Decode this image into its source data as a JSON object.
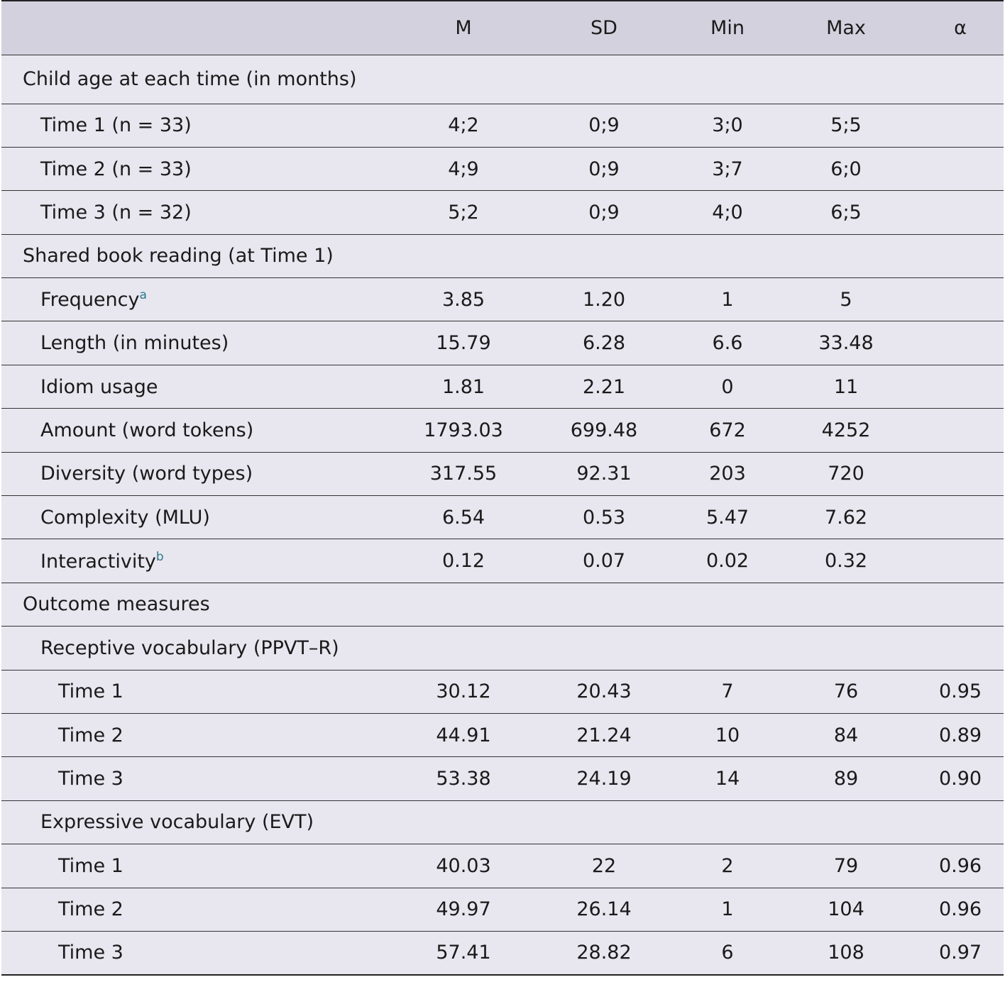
{
  "table": {
    "columns": [
      "M",
      "SD",
      "Min",
      "Max",
      "α"
    ],
    "sections": [
      {
        "title": "Child age at each time (in months)",
        "rows": [
          {
            "label": "Time 1 (n = 33)",
            "cells": [
              "4;2",
              "0;9",
              "3;0",
              "5;5"
            ]
          },
          {
            "label": "Time 2 (n = 33)",
            "cells": [
              "4;9",
              "0;9",
              "3;7",
              "6;0"
            ]
          },
          {
            "label": "Time 3 (n = 32)",
            "cells": [
              "5;2",
              "0;9",
              "4;0",
              "6;5"
            ]
          }
        ]
      },
      {
        "title": "Shared book reading (at Time 1)",
        "rows": [
          {
            "label": "Frequency",
            "note": "a",
            "cells": [
              "3.85",
              "1.20",
              "1",
              "5"
            ]
          },
          {
            "label": "Length (in minutes)",
            "cells": [
              "15.79",
              "6.28",
              "6.6",
              "33.48"
            ]
          },
          {
            "label": "Idiom usage",
            "cells": [
              "1.81",
              "2.21",
              "0",
              "11"
            ]
          },
          {
            "label": "Amount (word tokens)",
            "cells": [
              "1793.03",
              "699.48",
              "672",
              "4252"
            ]
          },
          {
            "label": "Diversity (word types)",
            "cells": [
              "317.55",
              "92.31",
              "203",
              "720"
            ]
          },
          {
            "label": "Complexity (MLU)",
            "cells": [
              "6.54",
              "0.53",
              "5.47",
              "7.62"
            ]
          },
          {
            "label": "Interactivity",
            "note": "b",
            "cells": [
              "0.12",
              "0.07",
              "0.02",
              "0.32"
            ]
          }
        ]
      },
      {
        "title": "Outcome measures",
        "groups": [
          {
            "title": "Receptive vocabulary (PPVT–R)",
            "rows": [
              {
                "label": "Time 1",
                "cells": [
                  "30.12",
                  "20.43",
                  "7",
                  "76",
                  "0.95"
                ]
              },
              {
                "label": "Time 2",
                "cells": [
                  "44.91",
                  "21.24",
                  "10",
                  "84",
                  "0.89"
                ]
              },
              {
                "label": "Time 3",
                "cells": [
                  "53.38",
                  "24.19",
                  "14",
                  "89",
                  "0.90"
                ]
              }
            ]
          },
          {
            "title": "Expressive vocabulary (EVT)",
            "rows": [
              {
                "label": "Time 1",
                "cells": [
                  "40.03",
                  "22",
                  "2",
                  "79",
                  "0.96"
                ]
              },
              {
                "label": "Time 2",
                "cells": [
                  "49.97",
                  "26.14",
                  "1",
                  "104",
                  "0.96"
                ]
              },
              {
                "label": "Time 3",
                "cells": [
                  "57.41",
                  "28.82",
                  "6",
                  "108",
                  "0.97"
                ]
              }
            ]
          }
        ]
      }
    ]
  }
}
